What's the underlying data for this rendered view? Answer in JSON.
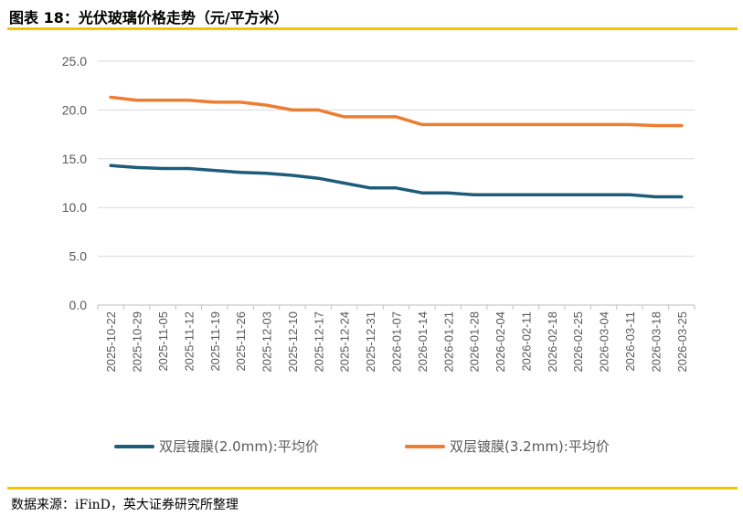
{
  "header": {
    "title": "图表 18：光伏玻璃价格走势（元/平方米）"
  },
  "footer": {
    "source": "数据来源：iFinD，英大证券研究所整理"
  },
  "chart_data": {
    "type": "line",
    "x": [
      "2025-10-22",
      "2025-10-29",
      "2025-11-05",
      "2025-11-12",
      "2025-11-19",
      "2025-11-26",
      "2025-12-03",
      "2025-12-10",
      "2025-12-17",
      "2025-12-24",
      "2025-12-31",
      "2026-01-07",
      "2026-01-14",
      "2026-01-21",
      "2026-01-28",
      "2026-02-04",
      "2026-02-11",
      "2026-02-18",
      "2026-02-25",
      "2026-03-04",
      "2026-03-11",
      "2026-03-18",
      "2026-03-25"
    ],
    "yticks": [
      "0.0",
      "5.0",
      "10.0",
      "15.0",
      "20.0",
      "25.0"
    ],
    "ylim": [
      0,
      25
    ],
    "grid": true,
    "legend_position": "bottom",
    "series": [
      {
        "name": "双层镀膜(2.0mm):平均价",
        "color": "#1f5c7a",
        "values": [
          14.3,
          14.1,
          14.0,
          14.0,
          13.8,
          13.6,
          13.5,
          13.3,
          13.0,
          12.5,
          12.0,
          12.0,
          11.5,
          11.5,
          11.3,
          11.3,
          11.3,
          11.3,
          11.3,
          11.3,
          11.3,
          11.1,
          11.1
        ]
      },
      {
        "name": "双层镀膜(3.2mm):平均价",
        "color": "#ed7d31",
        "values": [
          21.3,
          21.0,
          21.0,
          21.0,
          20.8,
          20.8,
          20.5,
          20.0,
          20.0,
          19.3,
          19.3,
          19.3,
          18.5,
          18.5,
          18.5,
          18.5,
          18.5,
          18.5,
          18.5,
          18.5,
          18.5,
          18.4,
          18.4
        ]
      }
    ]
  }
}
